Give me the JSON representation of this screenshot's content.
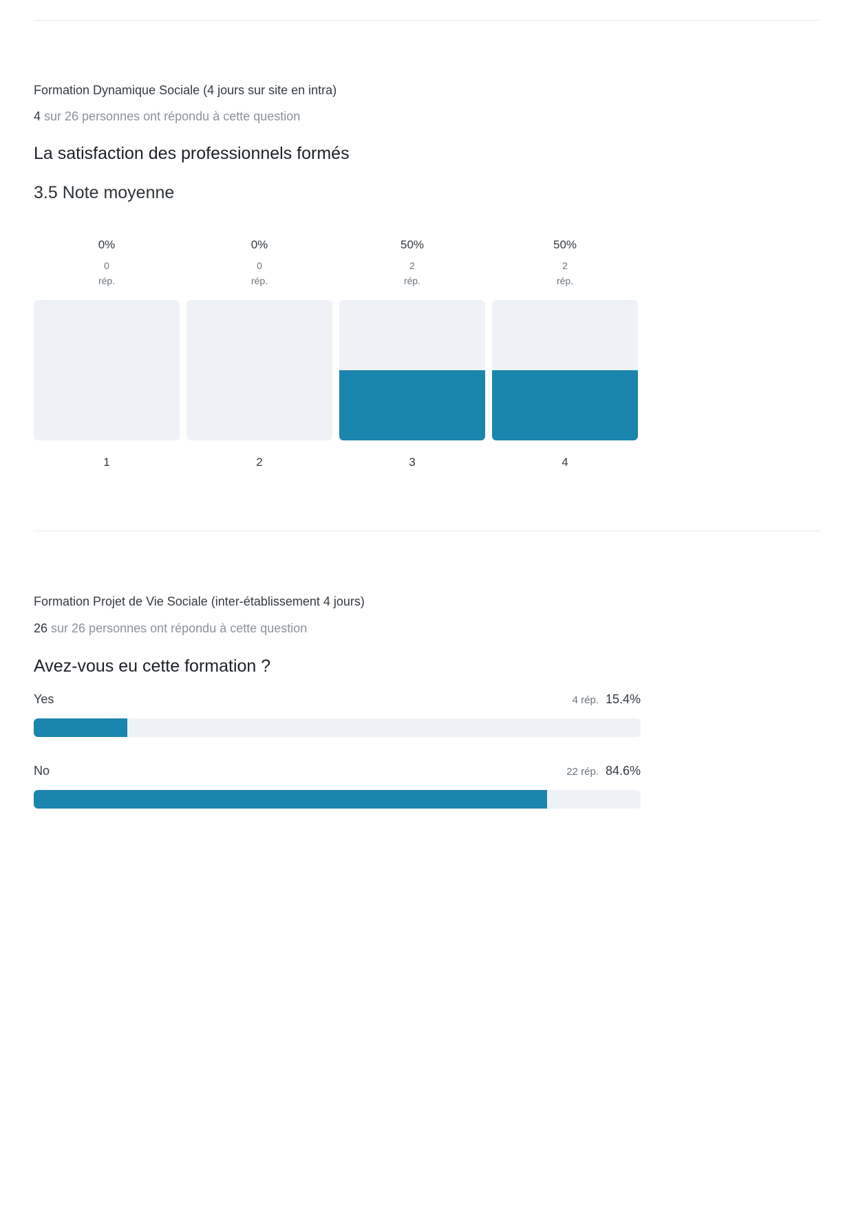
{
  "colors": {
    "accent": "#1a85ad",
    "track": "#eef2f6",
    "divider": "#e6e9ec"
  },
  "section1": {
    "title": "Formation Dynamique Sociale (4 jours sur site en intra)",
    "responses_count": "4",
    "responses_text": " sur 26 personnes ont répondu à cette question",
    "question": "La satisfaction des professionnels formés",
    "average": "3.5 Note moyenne"
  },
  "section2": {
    "title": "Formation Projet de Vie Sociale (inter-établissement 4 jours)",
    "responses_count": "26",
    "responses_text": " sur 26 personnes ont répondu à cette question",
    "question": "Avez-vous eu cette formation ?"
  },
  "chart_data": [
    {
      "type": "bar",
      "categories": [
        "1",
        "2",
        "3",
        "4"
      ],
      "values": [
        0,
        0,
        50,
        50
      ],
      "value_labels": [
        "0%",
        "0%",
        "50%",
        "50%"
      ],
      "counts": [
        "0",
        "0",
        "2",
        "2"
      ],
      "count_unit": "rép.",
      "ylim": [
        0,
        100
      ],
      "orientation": "vertical"
    },
    {
      "type": "bar",
      "orientation": "horizontal",
      "categories": [
        "Yes",
        "No"
      ],
      "values": [
        15.4,
        84.6
      ],
      "value_labels": [
        "15.4%",
        "84.6%"
      ],
      "counts": [
        "4 rép.",
        "22 rép."
      ],
      "xlim": [
        0,
        100
      ]
    }
  ]
}
